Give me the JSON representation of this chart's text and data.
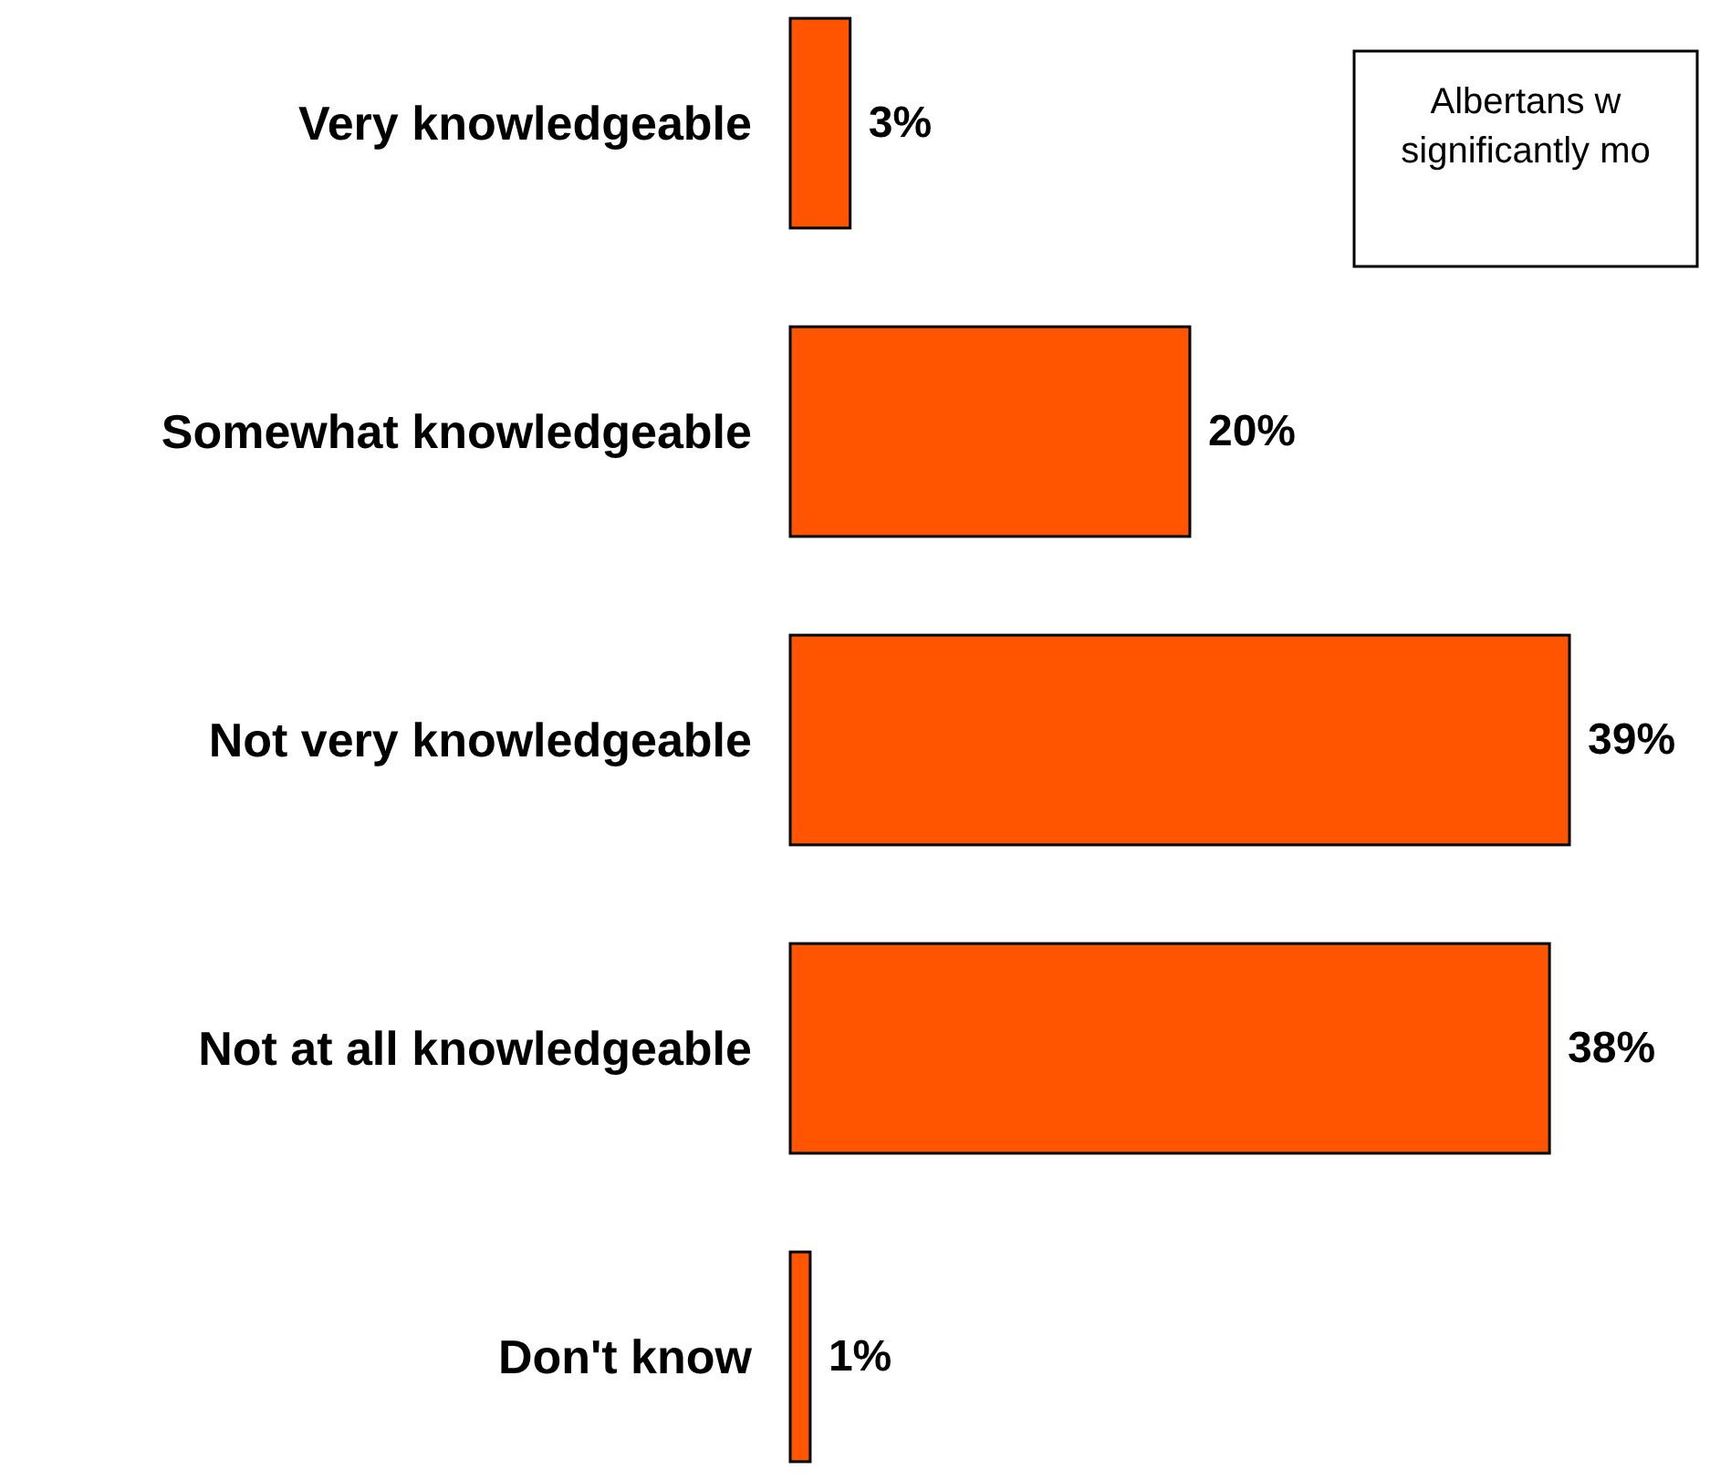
{
  "chart_data": {
    "type": "bar",
    "orientation": "horizontal",
    "categories": [
      "Very knowledgeable",
      "Somewhat knowledgeable",
      "Not very knowledgeable",
      "Not at all knowledgeable",
      "Don't know"
    ],
    "values": [
      3,
      20,
      39,
      38,
      1
    ],
    "value_labels": [
      "3%",
      "20%",
      "39%",
      "38%",
      "1%"
    ],
    "color": "#ff5500",
    "annotations": [
      "Albertans w\nsignificantly mo"
    ]
  }
}
